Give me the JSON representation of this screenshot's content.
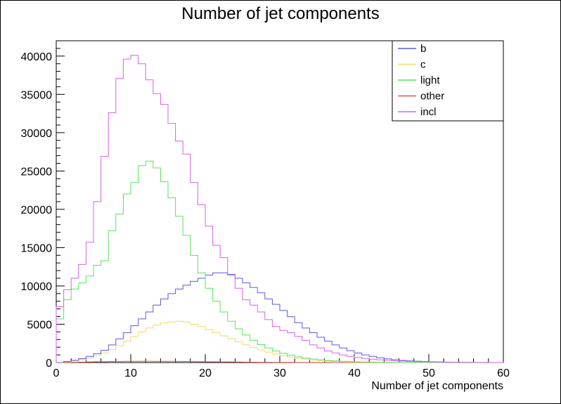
{
  "chart_data": {
    "type": "line",
    "title": "Number of jet components",
    "xlabel": "Number of jet components",
    "ylabel": "",
    "xlim": [
      0,
      60
    ],
    "ylim": [
      0,
      42000
    ],
    "xticks": [
      0,
      10,
      20,
      30,
      40,
      50,
      60
    ],
    "yticks": [
      0,
      5000,
      10000,
      15000,
      20000,
      25000,
      30000,
      35000,
      40000
    ],
    "grid": false,
    "legend_position": "top-right",
    "bin_edges_start": 0,
    "bin_width": 1,
    "series": [
      {
        "name": "b",
        "color": "#5a5ae8",
        "values": [
          0,
          150,
          300,
          500,
          800,
          1150,
          1600,
          2300,
          3100,
          3900,
          4800,
          5700,
          6600,
          7500,
          8300,
          9000,
          9600,
          10100,
          10600,
          11000,
          11400,
          11700,
          11700,
          11500,
          11000,
          10400,
          9800,
          9100,
          8300,
          7600,
          6800,
          6000,
          5200,
          4500,
          3900,
          3300,
          2800,
          2300,
          1900,
          1550,
          1250,
          1000,
          800,
          620,
          480,
          380,
          290,
          220,
          170,
          130,
          100,
          75,
          55,
          40,
          30,
          20,
          15,
          10,
          5,
          3
        ]
      },
      {
        "name": "c",
        "color": "#f2d96b",
        "values": [
          0,
          100,
          200,
          350,
          600,
          900,
          1250,
          1700,
          2200,
          2800,
          3400,
          4000,
          4500,
          4900,
          5200,
          5300,
          5400,
          5300,
          5000,
          4700,
          4300,
          3900,
          3500,
          3100,
          2700,
          2300,
          1950,
          1650,
          1350,
          1100,
          880,
          700,
          550,
          430,
          330,
          260,
          200,
          150,
          110,
          80,
          60,
          45,
          32,
          24,
          17,
          12,
          8,
          6,
          4,
          3,
          2,
          1,
          1,
          0,
          0,
          0,
          0,
          0,
          0,
          0
        ]
      },
      {
        "name": "light",
        "color": "#5ce05c",
        "values": [
          5700,
          8200,
          9600,
          10400,
          11300,
          12700,
          13300,
          17200,
          19400,
          22000,
          23500,
          25700,
          26300,
          25400,
          23600,
          21500,
          19100,
          16600,
          14000,
          11700,
          9700,
          8000,
          6600,
          5400,
          4400,
          3600,
          2900,
          2350,
          1900,
          1500,
          1200,
          950,
          750,
          590,
          460,
          360,
          280,
          215,
          165,
          125,
          95,
          72,
          54,
          40,
          30,
          22,
          16,
          12,
          9,
          6,
          4,
          3,
          2,
          1,
          1,
          0,
          0,
          0,
          0,
          0
        ]
      },
      {
        "name": "other",
        "color": "#e85555",
        "values": [
          0,
          20,
          40,
          60,
          80,
          100,
          120,
          140,
          150,
          160,
          165,
          170,
          170,
          165,
          160,
          155,
          145,
          135,
          125,
          115,
          105,
          95,
          85,
          75,
          65,
          55,
          48,
          40,
          34,
          28,
          23,
          19,
          15,
          12,
          10,
          8,
          6,
          5,
          4,
          3,
          2,
          2,
          1,
          1,
          1,
          0,
          0,
          0,
          0,
          0,
          0,
          0,
          0,
          0,
          0,
          0,
          0,
          0,
          0,
          0
        ]
      },
      {
        "name": "incl",
        "color": "#d660e8",
        "values": [
          7300,
          9500,
          11000,
          12800,
          15700,
          21000,
          26900,
          32600,
          37100,
          39600,
          40100,
          39000,
          36900,
          35100,
          33700,
          31200,
          28900,
          27200,
          23500,
          20600,
          17800,
          15300,
          13700,
          11400,
          9700,
          8200,
          7500,
          6600,
          5600,
          4700,
          4200,
          3900,
          3400,
          2900,
          2300,
          1900,
          1500,
          1250,
          1000,
          800,
          650,
          540,
          440,
          360,
          290,
          230,
          190,
          150,
          120,
          95,
          75,
          60,
          45,
          35,
          28,
          20,
          15,
          10,
          6,
          4
        ]
      }
    ]
  }
}
